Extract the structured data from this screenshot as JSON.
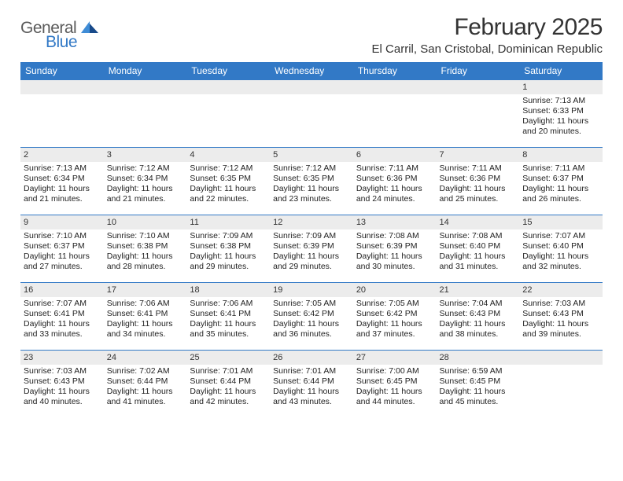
{
  "logo": {
    "text_general": "General",
    "text_blue": "Blue",
    "icon_color_dark": "#184a8a",
    "icon_color_light": "#3f8cd6"
  },
  "title": "February 2025",
  "location": "El Carril, San Cristobal, Dominican Republic",
  "header_bg": "#3279c6",
  "daynum_bg": "#ececec",
  "border_color": "#3279c6",
  "weekdays": [
    "Sunday",
    "Monday",
    "Tuesday",
    "Wednesday",
    "Thursday",
    "Friday",
    "Saturday"
  ],
  "weeks": [
    [
      null,
      null,
      null,
      null,
      null,
      null,
      {
        "n": "1",
        "sr": "Sunrise: 7:13 AM",
        "ss": "Sunset: 6:33 PM",
        "dl": "Daylight: 11 hours and 20 minutes."
      }
    ],
    [
      {
        "n": "2",
        "sr": "Sunrise: 7:13 AM",
        "ss": "Sunset: 6:34 PM",
        "dl": "Daylight: 11 hours and 21 minutes."
      },
      {
        "n": "3",
        "sr": "Sunrise: 7:12 AM",
        "ss": "Sunset: 6:34 PM",
        "dl": "Daylight: 11 hours and 21 minutes."
      },
      {
        "n": "4",
        "sr": "Sunrise: 7:12 AM",
        "ss": "Sunset: 6:35 PM",
        "dl": "Daylight: 11 hours and 22 minutes."
      },
      {
        "n": "5",
        "sr": "Sunrise: 7:12 AM",
        "ss": "Sunset: 6:35 PM",
        "dl": "Daylight: 11 hours and 23 minutes."
      },
      {
        "n": "6",
        "sr": "Sunrise: 7:11 AM",
        "ss": "Sunset: 6:36 PM",
        "dl": "Daylight: 11 hours and 24 minutes."
      },
      {
        "n": "7",
        "sr": "Sunrise: 7:11 AM",
        "ss": "Sunset: 6:36 PM",
        "dl": "Daylight: 11 hours and 25 minutes."
      },
      {
        "n": "8",
        "sr": "Sunrise: 7:11 AM",
        "ss": "Sunset: 6:37 PM",
        "dl": "Daylight: 11 hours and 26 minutes."
      }
    ],
    [
      {
        "n": "9",
        "sr": "Sunrise: 7:10 AM",
        "ss": "Sunset: 6:37 PM",
        "dl": "Daylight: 11 hours and 27 minutes."
      },
      {
        "n": "10",
        "sr": "Sunrise: 7:10 AM",
        "ss": "Sunset: 6:38 PM",
        "dl": "Daylight: 11 hours and 28 minutes."
      },
      {
        "n": "11",
        "sr": "Sunrise: 7:09 AM",
        "ss": "Sunset: 6:38 PM",
        "dl": "Daylight: 11 hours and 29 minutes."
      },
      {
        "n": "12",
        "sr": "Sunrise: 7:09 AM",
        "ss": "Sunset: 6:39 PM",
        "dl": "Daylight: 11 hours and 29 minutes."
      },
      {
        "n": "13",
        "sr": "Sunrise: 7:08 AM",
        "ss": "Sunset: 6:39 PM",
        "dl": "Daylight: 11 hours and 30 minutes."
      },
      {
        "n": "14",
        "sr": "Sunrise: 7:08 AM",
        "ss": "Sunset: 6:40 PM",
        "dl": "Daylight: 11 hours and 31 minutes."
      },
      {
        "n": "15",
        "sr": "Sunrise: 7:07 AM",
        "ss": "Sunset: 6:40 PM",
        "dl": "Daylight: 11 hours and 32 minutes."
      }
    ],
    [
      {
        "n": "16",
        "sr": "Sunrise: 7:07 AM",
        "ss": "Sunset: 6:41 PM",
        "dl": "Daylight: 11 hours and 33 minutes."
      },
      {
        "n": "17",
        "sr": "Sunrise: 7:06 AM",
        "ss": "Sunset: 6:41 PM",
        "dl": "Daylight: 11 hours and 34 minutes."
      },
      {
        "n": "18",
        "sr": "Sunrise: 7:06 AM",
        "ss": "Sunset: 6:41 PM",
        "dl": "Daylight: 11 hours and 35 minutes."
      },
      {
        "n": "19",
        "sr": "Sunrise: 7:05 AM",
        "ss": "Sunset: 6:42 PM",
        "dl": "Daylight: 11 hours and 36 minutes."
      },
      {
        "n": "20",
        "sr": "Sunrise: 7:05 AM",
        "ss": "Sunset: 6:42 PM",
        "dl": "Daylight: 11 hours and 37 minutes."
      },
      {
        "n": "21",
        "sr": "Sunrise: 7:04 AM",
        "ss": "Sunset: 6:43 PM",
        "dl": "Daylight: 11 hours and 38 minutes."
      },
      {
        "n": "22",
        "sr": "Sunrise: 7:03 AM",
        "ss": "Sunset: 6:43 PM",
        "dl": "Daylight: 11 hours and 39 minutes."
      }
    ],
    [
      {
        "n": "23",
        "sr": "Sunrise: 7:03 AM",
        "ss": "Sunset: 6:43 PM",
        "dl": "Daylight: 11 hours and 40 minutes."
      },
      {
        "n": "24",
        "sr": "Sunrise: 7:02 AM",
        "ss": "Sunset: 6:44 PM",
        "dl": "Daylight: 11 hours and 41 minutes."
      },
      {
        "n": "25",
        "sr": "Sunrise: 7:01 AM",
        "ss": "Sunset: 6:44 PM",
        "dl": "Daylight: 11 hours and 42 minutes."
      },
      {
        "n": "26",
        "sr": "Sunrise: 7:01 AM",
        "ss": "Sunset: 6:44 PM",
        "dl": "Daylight: 11 hours and 43 minutes."
      },
      {
        "n": "27",
        "sr": "Sunrise: 7:00 AM",
        "ss": "Sunset: 6:45 PM",
        "dl": "Daylight: 11 hours and 44 minutes."
      },
      {
        "n": "28",
        "sr": "Sunrise: 6:59 AM",
        "ss": "Sunset: 6:45 PM",
        "dl": "Daylight: 11 hours and 45 minutes."
      },
      null
    ]
  ]
}
